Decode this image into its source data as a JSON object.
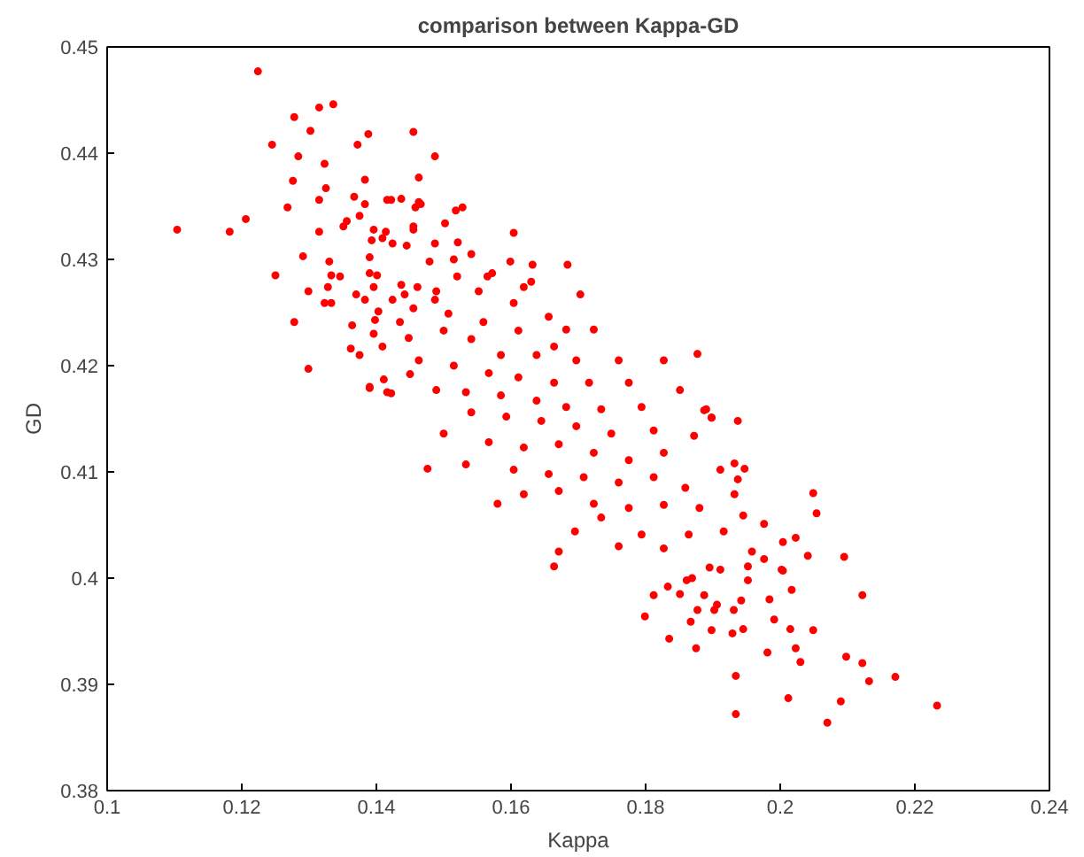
{
  "chart_data": {
    "type": "scatter",
    "title": "comparison between Kappa-GD",
    "xlabel": "Kappa",
    "ylabel": "GD",
    "marker": "circle",
    "grid": false,
    "xlim": [
      0.1,
      0.24
    ],
    "ylim": [
      0.38,
      0.45
    ],
    "xticks": [
      0.1,
      0.12,
      0.14,
      0.16,
      0.18,
      0.2,
      0.22,
      0.24
    ],
    "yticks": [
      0.38,
      0.39,
      0.4,
      0.41,
      0.42,
      0.43,
      0.44,
      0.45
    ],
    "series": [
      {
        "color": "#ff0000",
        "x": [
          0.2049,
          0.2054,
          0.2095,
          0.2122,
          0.2132,
          0.2171,
          0.2233,
          0.207,
          0.209,
          0.2012,
          0.1934,
          0.1934,
          0.2098,
          0.2122,
          0.2023,
          0.203,
          0.1981,
          0.2015,
          0.2049,
          0.1991,
          0.1984,
          0.2017,
          0.2004,
          0.2023,
          0.2041,
          0.2004,
          0.1976,
          0.1976,
          0.1945,
          0.1937,
          0.1947,
          0.1937,
          0.1898,
          0.1887,
          0.1812,
          0.1799,
          0.1835,
          0.1875,
          0.1898,
          0.1929,
          0.1945,
          0.1902,
          0.1931,
          0.1867,
          0.1877,
          0.1942,
          0.1887,
          0.1851,
          0.1861,
          0.1833,
          0.1895,
          0.1911,
          0.1952,
          0.1952,
          0.1869,
          0.1224,
          0.1104,
          0.1182,
          0.1206,
          0.1245,
          0.1278,
          0.1302,
          0.1315,
          0.1336,
          0.1284,
          0.1276,
          0.1268,
          0.1323,
          0.1325,
          0.1315,
          0.1315,
          0.1291,
          0.125,
          0.1299,
          0.1278,
          0.1299,
          0.1323,
          0.1333,
          0.1328,
          0.1333,
          0.1346,
          0.133,
          0.1351,
          0.1356,
          0.1367,
          0.1372,
          0.1388,
          0.1383,
          0.1383,
          0.1375,
          0.1455,
          0.1487,
          0.1463,
          0.139,
          0.137,
          0.1383,
          0.1364,
          0.1362,
          0.1375,
          0.139,
          0.1411,
          0.1422,
          0.1398,
          0.1396,
          0.1409,
          0.1401,
          0.1393,
          0.1422,
          0.1437,
          0.1458,
          0.1466,
          0.1455,
          0.1502,
          0.1518,
          0.1528,
          0.1604,
          0.1414,
          0.1409,
          0.1424,
          0.1445,
          0.1479,
          0.1521,
          0.1541,
          0.1424,
          0.1442,
          0.1461,
          0.1487,
          0.152,
          0.1565,
          0.1599,
          0.1619,
          0.1632,
          0.1684,
          0.1435,
          0.145,
          0.1416,
          0.1463,
          0.1396,
          0.1455,
          0.1487,
          0.1515,
          0.1572,
          0.163,
          0.1703,
          0.139,
          0.1437,
          0.1489,
          0.1552,
          0.1604,
          0.1656,
          0.1682,
          0.1723,
          0.1403,
          0.1455,
          0.1507,
          0.1559,
          0.1611,
          0.1664,
          0.1396,
          0.1448,
          0.15,
          0.1541,
          0.1585,
          0.1638,
          0.1697,
          0.176,
          0.1827,
          0.1877,
          0.1463,
          0.1515,
          0.1567,
          0.1611,
          0.1664,
          0.1716,
          0.1775,
          0.1489,
          0.1533,
          0.1585,
          0.1638,
          0.1682,
          0.1734,
          0.1794,
          0.1851,
          0.139,
          0.1416,
          0.1541,
          0.1593,
          0.1645,
          0.1697,
          0.1749,
          0.1812,
          0.189,
          0.1898,
          0.15,
          0.1567,
          0.1619,
          0.1671,
          0.1723,
          0.1775,
          0.1827,
          0.1872,
          0.1533,
          0.1476,
          0.1604,
          0.1656,
          0.1708,
          0.176,
          0.1812,
          0.1859,
          0.1911,
          0.1932,
          0.158,
          0.1619,
          0.1671,
          0.1723,
          0.1775,
          0.1827,
          0.188,
          0.1932,
          0.1695,
          0.1734,
          0.176,
          0.1794,
          0.1827,
          0.1864,
          0.1916,
          0.1671,
          0.1664,
          0.1906,
          0.1958,
          0.2002
        ],
        "values": [
          0.408,
          0.4061,
          0.402,
          0.3984,
          0.3903,
          0.3907,
          0.388,
          0.3864,
          0.3884,
          0.3887,
          0.3872,
          0.3908,
          0.3926,
          0.392,
          0.3934,
          0.3921,
          0.393,
          0.3952,
          0.3951,
          0.3961,
          0.398,
          0.3989,
          0.4007,
          0.4038,
          0.4021,
          0.4034,
          0.4051,
          0.4018,
          0.4059,
          0.4093,
          0.4103,
          0.4148,
          0.4151,
          0.4158,
          0.3984,
          0.3964,
          0.3943,
          0.3934,
          0.3951,
          0.3948,
          0.3952,
          0.397,
          0.397,
          0.3959,
          0.397,
          0.3979,
          0.3984,
          0.3985,
          0.3998,
          0.3992,
          0.401,
          0.4008,
          0.4011,
          0.3998,
          0.4,
          0.4477,
          0.4328,
          0.4326,
          0.4338,
          0.4408,
          0.4434,
          0.4421,
          0.4443,
          0.4446,
          0.4397,
          0.4374,
          0.4349,
          0.439,
          0.4367,
          0.4356,
          0.4326,
          0.4303,
          0.4285,
          0.427,
          0.4241,
          0.4197,
          0.4259,
          0.4259,
          0.4274,
          0.4285,
          0.4284,
          0.4298,
          0.4331,
          0.4336,
          0.4359,
          0.4408,
          0.4418,
          0.4375,
          0.4352,
          0.4341,
          0.442,
          0.4397,
          0.4377,
          0.4302,
          0.4267,
          0.4262,
          0.4238,
          0.4216,
          0.421,
          0.4179,
          0.4187,
          0.4174,
          0.4243,
          0.4274,
          0.4218,
          0.4285,
          0.4318,
          0.4356,
          0.4357,
          0.4349,
          0.4352,
          0.4331,
          0.4334,
          0.4346,
          0.4349,
          0.4325,
          0.4326,
          0.432,
          0.4315,
          0.4313,
          0.4298,
          0.4316,
          0.4305,
          0.4262,
          0.4267,
          0.4274,
          0.4262,
          0.4284,
          0.4284,
          0.4298,
          0.4274,
          0.4295,
          0.4295,
          0.4241,
          0.4192,
          0.4356,
          0.4354,
          0.4328,
          0.4328,
          0.4315,
          0.43,
          0.4287,
          0.4279,
          0.4267,
          0.4287,
          0.4276,
          0.427,
          0.427,
          0.4259,
          0.4246,
          0.4234,
          0.4234,
          0.4251,
          0.4254,
          0.4249,
          0.4241,
          0.4233,
          0.4218,
          0.423,
          0.4226,
          0.4233,
          0.4225,
          0.421,
          0.421,
          0.4205,
          0.4205,
          0.4205,
          0.4211,
          0.4205,
          0.42,
          0.4193,
          0.4189,
          0.4184,
          0.4184,
          0.4184,
          0.4177,
          0.4175,
          0.4172,
          0.4167,
          0.4161,
          0.4159,
          0.4161,
          0.4177,
          0.418,
          0.4175,
          0.4156,
          0.4152,
          0.4148,
          0.4143,
          0.4136,
          0.4139,
          0.4159,
          0.4151,
          0.4136,
          0.4128,
          0.4123,
          0.4126,
          0.4118,
          0.4111,
          0.4118,
          0.4134,
          0.4107,
          0.4103,
          0.4102,
          0.4098,
          0.4095,
          0.409,
          0.4095,
          0.4085,
          0.4102,
          0.4108,
          0.407,
          0.4079,
          0.4082,
          0.407,
          0.4066,
          0.4069,
          0.4066,
          0.4079,
          0.4044,
          0.4057,
          0.403,
          0.4041,
          0.4028,
          0.4041,
          0.4044,
          0.4025,
          0.4011,
          0.3975,
          0.4025,
          0.4008
        ]
      }
    ]
  }
}
